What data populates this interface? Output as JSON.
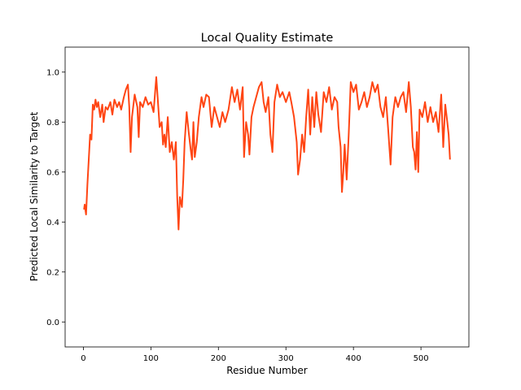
{
  "chart_data": {
    "type": "line",
    "title": "Local Quality Estimate",
    "x_label": "Residue Number",
    "y_label": "Predicted Local Similarity to Target",
    "xlim": [
      -27,
      571
    ],
    "ylim": [
      -0.1,
      1.1
    ],
    "xticks": [
      0,
      100,
      200,
      300,
      400,
      500
    ],
    "yticks": [
      {
        "value": 0,
        "label": "0.0"
      },
      0.2,
      0.4,
      0.6,
      0.8,
      {
        "value": 1,
        "label": "1.0"
      }
    ],
    "x": [
      1,
      2,
      4,
      6,
      8,
      10,
      12,
      14,
      16,
      18,
      20,
      22,
      25,
      28,
      30,
      33,
      36,
      40,
      43,
      46,
      50,
      53,
      56,
      60,
      63,
      66,
      68,
      70,
      72,
      76,
      80,
      82,
      84,
      88,
      92,
      96,
      100,
      104,
      108,
      110,
      113,
      116,
      118,
      120,
      122,
      125,
      128,
      131,
      134,
      137,
      139,
      141,
      143,
      146,
      148,
      150,
      153,
      156,
      159,
      161,
      163,
      165,
      168,
      171,
      175,
      178,
      182,
      186,
      190,
      194,
      198,
      202,
      206,
      210,
      215,
      220,
      224,
      228,
      232,
      236,
      238,
      241,
      244,
      246,
      249,
      252,
      256,
      260,
      264,
      267,
      270,
      274,
      277,
      280,
      283,
      287,
      291,
      295,
      300,
      305,
      308,
      312,
      316,
      318,
      321,
      324,
      327,
      330,
      333,
      336,
      339,
      342,
      345,
      348,
      352,
      356,
      360,
      364,
      368,
      372,
      376,
      378,
      381,
      383,
      385,
      387,
      390,
      393,
      396,
      400,
      404,
      408,
      412,
      416,
      420,
      424,
      428,
      432,
      436,
      440,
      444,
      448,
      452,
      455,
      458,
      462,
      466,
      470,
      474,
      478,
      482,
      485,
      488,
      490,
      492,
      494,
      496,
      498,
      502,
      506,
      510,
      514,
      518,
      522,
      526,
      530,
      533,
      536,
      539,
      541,
      543
    ],
    "series": [
      {
        "color": "#ff4513",
        "values": [
          0.45,
          0.47,
          0.43,
          0.55,
          0.65,
          0.75,
          0.73,
          0.87,
          0.85,
          0.89,
          0.86,
          0.88,
          0.82,
          0.87,
          0.8,
          0.86,
          0.85,
          0.88,
          0.83,
          0.89,
          0.86,
          0.88,
          0.85,
          0.9,
          0.93,
          0.95,
          0.86,
          0.68,
          0.82,
          0.91,
          0.86,
          0.74,
          0.88,
          0.86,
          0.9,
          0.87,
          0.88,
          0.84,
          0.98,
          0.9,
          0.78,
          0.8,
          0.71,
          0.75,
          0.7,
          0.82,
          0.68,
          0.72,
          0.65,
          0.72,
          0.5,
          0.37,
          0.5,
          0.46,
          0.57,
          0.72,
          0.84,
          0.76,
          0.69,
          0.65,
          0.8,
          0.66,
          0.72,
          0.82,
          0.9,
          0.86,
          0.91,
          0.9,
          0.78,
          0.86,
          0.82,
          0.78,
          0.84,
          0.8,
          0.85,
          0.94,
          0.88,
          0.93,
          0.85,
          0.94,
          0.66,
          0.8,
          0.75,
          0.67,
          0.82,
          0.86,
          0.9,
          0.94,
          0.96,
          0.88,
          0.84,
          0.9,
          0.75,
          0.68,
          0.88,
          0.95,
          0.9,
          0.92,
          0.88,
          0.92,
          0.88,
          0.82,
          0.72,
          0.59,
          0.65,
          0.75,
          0.68,
          0.82,
          0.93,
          0.75,
          0.9,
          0.78,
          0.92,
          0.83,
          0.76,
          0.92,
          0.88,
          0.94,
          0.85,
          0.9,
          0.88,
          0.78,
          0.7,
          0.52,
          0.6,
          0.71,
          0.57,
          0.75,
          0.96,
          0.92,
          0.95,
          0.85,
          0.88,
          0.92,
          0.86,
          0.9,
          0.96,
          0.92,
          0.95,
          0.86,
          0.82,
          0.9,
          0.75,
          0.63,
          0.82,
          0.9,
          0.86,
          0.9,
          0.92,
          0.84,
          0.96,
          0.86,
          0.7,
          0.68,
          0.61,
          0.76,
          0.6,
          0.85,
          0.82,
          0.88,
          0.8,
          0.86,
          0.8,
          0.84,
          0.76,
          0.91,
          0.7,
          0.87,
          0.8,
          0.75,
          0.65
        ]
      }
    ]
  }
}
